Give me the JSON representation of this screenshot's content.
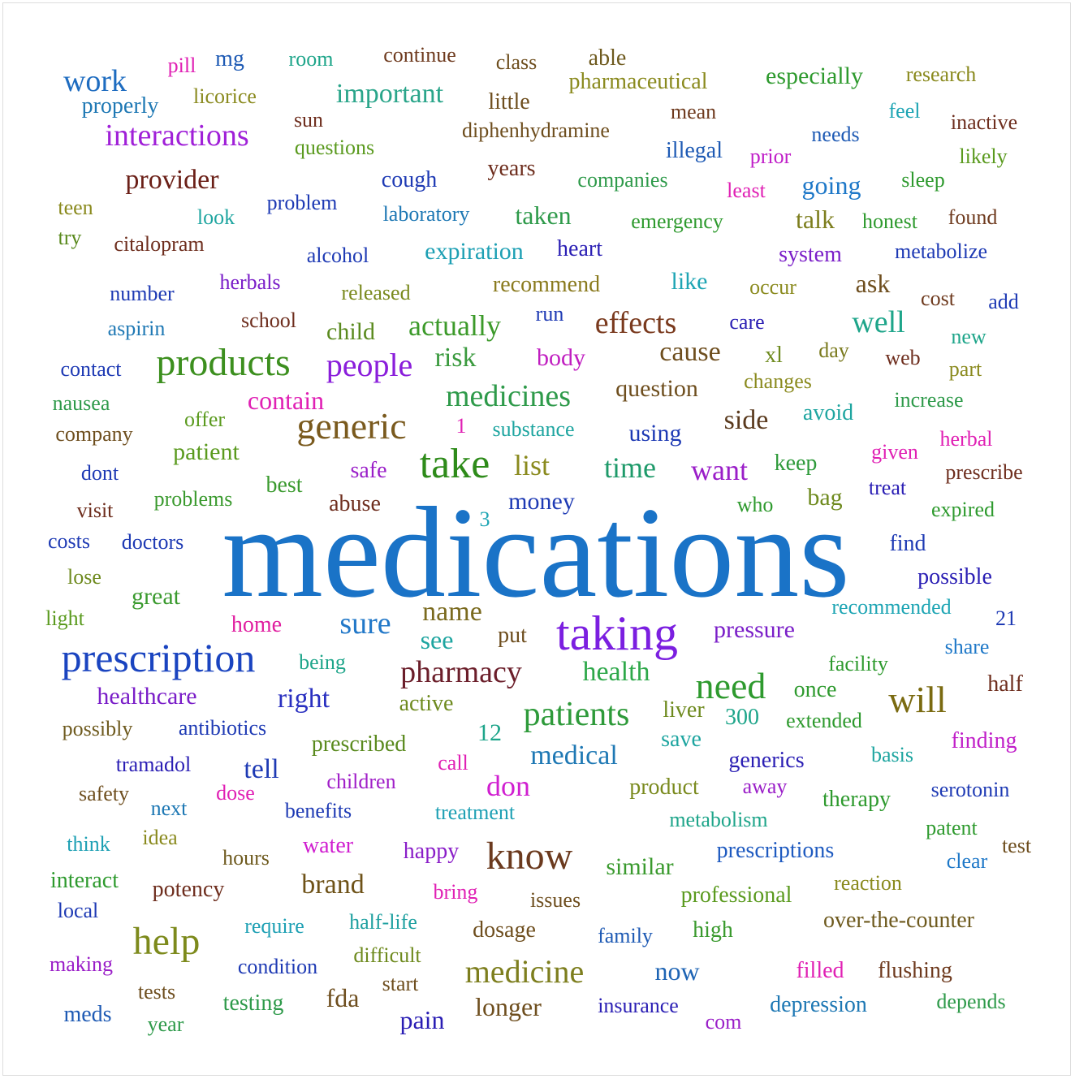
{
  "words": [
    {
      "text": "medications",
      "weight": 160,
      "color": "#1a73c7"
    },
    {
      "text": "taking",
      "weight": 60,
      "color": "#7b1fe0"
    },
    {
      "text": "prescription",
      "weight": 50,
      "color": "#1a44c0"
    },
    {
      "text": "products",
      "weight": 48,
      "color": "#3c8f1e"
    },
    {
      "text": "take",
      "weight": 52,
      "color": "#2e8b1a"
    },
    {
      "text": "generic",
      "weight": 46,
      "color": "#7a5a1e"
    },
    {
      "text": "know",
      "weight": 48,
      "color": "#6b3a1e"
    },
    {
      "text": "help",
      "weight": 48,
      "color": "#7d8a1c"
    },
    {
      "text": "will",
      "weight": 46,
      "color": "#7a6a10"
    },
    {
      "text": "need",
      "weight": 46,
      "color": "#2e9a2e"
    },
    {
      "text": "patients",
      "weight": 42,
      "color": "#2e9a3a"
    },
    {
      "text": "medicine",
      "weight": 40,
      "color": "#7d7e1e"
    },
    {
      "text": "interactions",
      "weight": 38,
      "color": "#a020d8"
    },
    {
      "text": "work",
      "weight": 38,
      "color": "#1e6cc0"
    },
    {
      "text": "people",
      "weight": 40,
      "color": "#8a1edb"
    },
    {
      "text": "sure",
      "weight": 38,
      "color": "#2278c8"
    },
    {
      "text": "pharmacy",
      "weight": 38,
      "color": "#6b1e2a"
    },
    {
      "text": "effects",
      "weight": 38,
      "color": "#7a3a1e"
    },
    {
      "text": "medicines",
      "weight": 38,
      "color": "#2e9a4a"
    },
    {
      "text": "important",
      "weight": 34,
      "color": "#2aa58a"
    },
    {
      "text": "provider",
      "weight": 34,
      "color": "#6b2018"
    },
    {
      "text": "actually",
      "weight": 36,
      "color": "#3c9a2a"
    },
    {
      "text": "don",
      "weight": 36,
      "color": "#d01ed0"
    },
    {
      "text": "cause",
      "weight": 34,
      "color": "#6e4e1e"
    },
    {
      "text": "time",
      "weight": 36,
      "color": "#1e9a6a"
    },
    {
      "text": "want",
      "weight": 36,
      "color": "#9a1ec8"
    },
    {
      "text": "list",
      "weight": 36,
      "color": "#8a8a1e"
    },
    {
      "text": "side",
      "weight": 34,
      "color": "#5a3a1e"
    },
    {
      "text": "well",
      "weight": 38,
      "color": "#1ea58a"
    },
    {
      "text": "brand",
      "weight": 34,
      "color": "#6e5218"
    },
    {
      "text": "health",
      "weight": 34,
      "color": "#2ea84a"
    },
    {
      "text": "right",
      "weight": 34,
      "color": "#2a30c0"
    },
    {
      "text": "name",
      "weight": 34,
      "color": "#7a6a1e"
    },
    {
      "text": "medical",
      "weight": 34,
      "color": "#1e78b4"
    },
    {
      "text": "risk",
      "weight": 34,
      "color": "#3a9a3e"
    },
    {
      "text": "tell",
      "weight": 34,
      "color": "#1e3ab4"
    },
    {
      "text": "contain",
      "weight": 32,
      "color": "#e020b4"
    },
    {
      "text": "similar",
      "weight": 30,
      "color": "#3a9a2e"
    },
    {
      "text": "fda",
      "weight": 32,
      "color": "#6e4e1e"
    },
    {
      "text": "longer",
      "weight": 32,
      "color": "#6e4e1e"
    },
    {
      "text": "now",
      "weight": 32,
      "color": "#1e64b4"
    },
    {
      "text": "pain",
      "weight": 32,
      "color": "#2a1eb4"
    },
    {
      "text": "see",
      "weight": 32,
      "color": "#1ea5a0"
    },
    {
      "text": "talk",
      "weight": 32,
      "color": "#7d7e1e"
    },
    {
      "text": "going",
      "weight": 32,
      "color": "#1e78c8"
    },
    {
      "text": "healthcare",
      "weight": 30,
      "color": "#7a1ec8"
    },
    {
      "text": "taken",
      "weight": 32,
      "color": "#2e9a4a"
    },
    {
      "text": "money",
      "weight": 30,
      "color": "#1e3ab4"
    },
    {
      "text": "pressure",
      "weight": 30,
      "color": "#7a1ec8"
    },
    {
      "text": "body",
      "weight": 30,
      "color": "#c01ec0"
    },
    {
      "text": "using",
      "weight": 30,
      "color": "#1e3ab4"
    },
    {
      "text": "question",
      "weight": 30,
      "color": "#6e4e1e"
    },
    {
      "text": "patient",
      "weight": 30,
      "color": "#5a9a1e"
    },
    {
      "text": "great",
      "weight": 30,
      "color": "#3a9a2e"
    },
    {
      "text": "expiration",
      "weight": 30,
      "color": "#1ea0b4"
    },
    {
      "text": "especially",
      "weight": 30,
      "color": "#2e9a2e"
    },
    {
      "text": "pharmaceutical",
      "weight": 28,
      "color": "#8a8a1e"
    },
    {
      "text": "recommend",
      "weight": 28,
      "color": "#8a7a1e"
    },
    {
      "text": "years",
      "weight": 28,
      "color": "#6e2e1e"
    },
    {
      "text": "meds",
      "weight": 28,
      "color": "#1e5ab4"
    },
    {
      "text": "safe",
      "weight": 28,
      "color": "#9a1ec8"
    },
    {
      "text": "home",
      "weight": 28,
      "color": "#e01ea0"
    },
    {
      "text": "cough",
      "weight": 28,
      "color": "#1e3ab4"
    },
    {
      "text": "ask",
      "weight": 32,
      "color": "#6e4e1e"
    },
    {
      "text": "keep",
      "weight": 28,
      "color": "#2e9a3a"
    },
    {
      "text": "bag",
      "weight": 30,
      "color": "#6e8a1e"
    },
    {
      "text": "like",
      "weight": 30,
      "color": "#1ea5b4"
    },
    {
      "text": "once",
      "weight": 28,
      "color": "#2e9a2e"
    },
    {
      "text": "child",
      "weight": 30,
      "color": "#5a8a1e"
    },
    {
      "text": "abuse",
      "weight": 28,
      "color": "#6e2e1e"
    },
    {
      "text": "best",
      "weight": 28,
      "color": "#3a9a2e"
    },
    {
      "text": "problems",
      "weight": 26,
      "color": "#3a9a2e"
    },
    {
      "text": "system",
      "weight": 28,
      "color": "#7a1ec8"
    },
    {
      "text": "water",
      "weight": 28,
      "color": "#d01ed0"
    },
    {
      "text": "happy",
      "weight": 28,
      "color": "#8a1ec8"
    },
    {
      "text": "product",
      "weight": 28,
      "color": "#7a8a1e"
    },
    {
      "text": "doctors",
      "weight": 26,
      "color": "#1e3ab4"
    },
    {
      "text": "finding",
      "weight": 28,
      "color": "#c01ec8"
    },
    {
      "text": "therapy",
      "weight": 28,
      "color": "#2e9a2e"
    },
    {
      "text": "over-the-counter",
      "weight": 28,
      "color": "#6e5a1e"
    },
    {
      "text": "prescriptions",
      "weight": 28,
      "color": "#1e5ac0"
    },
    {
      "text": "treatment",
      "weight": 26,
      "color": "#1ea0b4"
    },
    {
      "text": "prescribed",
      "weight": 28,
      "color": "#5a8a1e"
    },
    {
      "text": "generics",
      "weight": 28,
      "color": "#2a1eb4"
    },
    {
      "text": "filled",
      "weight": 28,
      "color": "#e020b4"
    },
    {
      "text": "flushing",
      "weight": 28,
      "color": "#6e3a1e"
    },
    {
      "text": "depression",
      "weight": 28,
      "color": "#1e78b4"
    },
    {
      "text": "insurance",
      "weight": 26,
      "color": "#2a1eb4"
    },
    {
      "text": "dosage",
      "weight": 28,
      "color": "#6e4e1e"
    },
    {
      "text": "high",
      "weight": 28,
      "color": "#3a9a2e"
    },
    {
      "text": "professional",
      "weight": 28,
      "color": "#5a9a1e"
    },
    {
      "text": "hours",
      "weight": 26,
      "color": "#6e5a1e"
    },
    {
      "text": "potency",
      "weight": 28,
      "color": "#6e2e1e"
    },
    {
      "text": "interact",
      "weight": 28,
      "color": "#2e9a2e"
    },
    {
      "text": "testing",
      "weight": 28,
      "color": "#2e9a4a"
    },
    {
      "text": "condition",
      "weight": 26,
      "color": "#1e3ab4"
    },
    {
      "text": "benefits",
      "weight": 26,
      "color": "#1e3ab4"
    },
    {
      "text": "children",
      "weight": 26,
      "color": "#a01ec8"
    },
    {
      "text": "difficult",
      "weight": 26,
      "color": "#6e8a1e"
    },
    {
      "text": "half-life",
      "weight": 26,
      "color": "#1ea0a0"
    },
    {
      "text": "require",
      "weight": 26,
      "color": "#1ea0b4"
    },
    {
      "text": "family",
      "weight": 26,
      "color": "#1e5ab4"
    },
    {
      "text": "issues",
      "weight": 26,
      "color": "#6e4e1e"
    },
    {
      "text": "start",
      "weight": 26,
      "color": "#6e4e1e"
    },
    {
      "text": "com",
      "weight": 26,
      "color": "#9a1ec8"
    },
    {
      "text": "depends",
      "weight": 26,
      "color": "#2e9a4a"
    },
    {
      "text": "reaction",
      "weight": 26,
      "color": "#8a8a1e"
    },
    {
      "text": "test",
      "weight": 26,
      "color": "#6e4e1e"
    },
    {
      "text": "clear",
      "weight": 26,
      "color": "#1e78c8"
    },
    {
      "text": "patent",
      "weight": 26,
      "color": "#2e9a2e"
    },
    {
      "text": "serotonin",
      "weight": 26,
      "color": "#1e3ab4"
    },
    {
      "text": "metabolism",
      "weight": 26,
      "color": "#1ea58a"
    },
    {
      "text": "away",
      "weight": 26,
      "color": "#9a1ec8"
    },
    {
      "text": "basis",
      "weight": 26,
      "color": "#1ea5a0"
    },
    {
      "text": "extended",
      "weight": 26,
      "color": "#2e9a2e"
    },
    {
      "text": "300",
      "weight": 28,
      "color": "#1ea58a"
    },
    {
      "text": "liver",
      "weight": 28,
      "color": "#6e8a1e"
    },
    {
      "text": "save",
      "weight": 28,
      "color": "#1ea5a0"
    },
    {
      "text": "active",
      "weight": 28,
      "color": "#6e8a1e"
    },
    {
      "text": "12",
      "weight": 30,
      "color": "#1ea58a"
    },
    {
      "text": "call",
      "weight": 26,
      "color": "#e020b4"
    },
    {
      "text": "dose",
      "weight": 26,
      "color": "#e020b4"
    },
    {
      "text": "bring",
      "weight": 26,
      "color": "#e020b4"
    },
    {
      "text": "being",
      "weight": 26,
      "color": "#1ea58a"
    },
    {
      "text": "put",
      "weight": 28,
      "color": "#6e4e1e"
    },
    {
      "text": "possibly",
      "weight": 26,
      "color": "#6e5a1e"
    },
    {
      "text": "antibiotics",
      "weight": 26,
      "color": "#1e3ab4"
    },
    {
      "text": "tramadol",
      "weight": 26,
      "color": "#2a1eb4"
    },
    {
      "text": "safety",
      "weight": 26,
      "color": "#6e4e1e"
    },
    {
      "text": "next",
      "weight": 26,
      "color": "#1e78b4"
    },
    {
      "text": "idea",
      "weight": 26,
      "color": "#8a8a1e"
    },
    {
      "text": "think",
      "weight": 26,
      "color": "#1ea0b4"
    },
    {
      "text": "local",
      "weight": 26,
      "color": "#1e3ab4"
    },
    {
      "text": "making",
      "weight": 26,
      "color": "#9a1ec8"
    },
    {
      "text": "tests",
      "weight": 26,
      "color": "#6e4e1e"
    },
    {
      "text": "year",
      "weight": 26,
      "color": "#2e9a4a"
    },
    {
      "text": "light",
      "weight": 26,
      "color": "#5a9a1e"
    },
    {
      "text": "lose",
      "weight": 26,
      "color": "#6e8a1e"
    },
    {
      "text": "costs",
      "weight": 26,
      "color": "#1e3ab4"
    },
    {
      "text": "visit",
      "weight": 26,
      "color": "#6e2e1e"
    },
    {
      "text": "dont",
      "weight": 26,
      "color": "#1e3ab4"
    },
    {
      "text": "company",
      "weight": 26,
      "color": "#6e4e1e"
    },
    {
      "text": "nausea",
      "weight": 26,
      "color": "#2e9a4a"
    },
    {
      "text": "contact",
      "weight": 26,
      "color": "#1e3ab4"
    },
    {
      "text": "aspirin",
      "weight": 26,
      "color": "#1e78b4"
    },
    {
      "text": "number",
      "weight": 26,
      "color": "#1e3ab4"
    },
    {
      "text": "try",
      "weight": 26,
      "color": "#5a8a1e"
    },
    {
      "text": "citalopram",
      "weight": 26,
      "color": "#6e2e1e"
    },
    {
      "text": "teen",
      "weight": 26,
      "color": "#8a8a1e"
    },
    {
      "text": "look",
      "weight": 26,
      "color": "#1ea5a0"
    },
    {
      "text": "problem",
      "weight": 26,
      "color": "#1e3ab4"
    },
    {
      "text": "laboratory",
      "weight": 26,
      "color": "#1e78b4"
    },
    {
      "text": "properly",
      "weight": 28,
      "color": "#1e78b4"
    },
    {
      "text": "licorice",
      "weight": 26,
      "color": "#8a8a1e"
    },
    {
      "text": "pill",
      "weight": 26,
      "color": "#e020b4"
    },
    {
      "text": "mg",
      "weight": 28,
      "color": "#1e5ab4"
    },
    {
      "text": "room",
      "weight": 26,
      "color": "#1ea58a"
    },
    {
      "text": "continue",
      "weight": 26,
      "color": "#6e3a1e"
    },
    {
      "text": "class",
      "weight": 26,
      "color": "#6e4e1e"
    },
    {
      "text": "able",
      "weight": 28,
      "color": "#6e5a1e"
    },
    {
      "text": "research",
      "weight": 26,
      "color": "#8a8a1e"
    },
    {
      "text": "little",
      "weight": 28,
      "color": "#6e4e1e"
    },
    {
      "text": "mean",
      "weight": 26,
      "color": "#6e3a1e"
    },
    {
      "text": "feel",
      "weight": 26,
      "color": "#1ea5b4"
    },
    {
      "text": "inactive",
      "weight": 26,
      "color": "#6e2e1e"
    },
    {
      "text": "sun",
      "weight": 26,
      "color": "#6e2e1e"
    },
    {
      "text": "questions",
      "weight": 26,
      "color": "#5a9a1e"
    },
    {
      "text": "diphenhydramine",
      "weight": 26,
      "color": "#6e4e1e"
    },
    {
      "text": "illegal",
      "weight": 28,
      "color": "#1e5ab4"
    },
    {
      "text": "needs",
      "weight": 26,
      "color": "#1e5ab4"
    },
    {
      "text": "prior",
      "weight": 26,
      "color": "#c01ec8"
    },
    {
      "text": "likely",
      "weight": 26,
      "color": "#5a9a1e"
    },
    {
      "text": "companies",
      "weight": 26,
      "color": "#2e9a4a"
    },
    {
      "text": "least",
      "weight": 26,
      "color": "#e020b4"
    },
    {
      "text": "sleep",
      "weight": 26,
      "color": "#2e9a2e"
    },
    {
      "text": "emergency",
      "weight": 26,
      "color": "#2e9a2e"
    },
    {
      "text": "honest",
      "weight": 26,
      "color": "#2e9a2e"
    },
    {
      "text": "found",
      "weight": 26,
      "color": "#6e3a1e"
    },
    {
      "text": "alcohol",
      "weight": 26,
      "color": "#1e3ab4"
    },
    {
      "text": "heart",
      "weight": 28,
      "color": "#2a1eb4"
    },
    {
      "text": "metabolize",
      "weight": 26,
      "color": "#1e3ab4"
    },
    {
      "text": "herbals",
      "weight": 26,
      "color": "#7a1ec8"
    },
    {
      "text": "released",
      "weight": 26,
      "color": "#7a8a1e"
    },
    {
      "text": "occur",
      "weight": 26,
      "color": "#8a8a1e"
    },
    {
      "text": "cost",
      "weight": 26,
      "color": "#6e3a1e"
    },
    {
      "text": "add",
      "weight": 26,
      "color": "#1e3ab4"
    },
    {
      "text": "school",
      "weight": 26,
      "color": "#6e2e1e"
    },
    {
      "text": "run",
      "weight": 26,
      "color": "#1e3ab4"
    },
    {
      "text": "care",
      "weight": 26,
      "color": "#2a1eb4"
    },
    {
      "text": "new",
      "weight": 26,
      "color": "#1ea58a"
    },
    {
      "text": "xl",
      "weight": 28,
      "color": "#6e8a1e"
    },
    {
      "text": "day",
      "weight": 26,
      "color": "#7a7a1e"
    },
    {
      "text": "web",
      "weight": 26,
      "color": "#6e2e1e"
    },
    {
      "text": "part",
      "weight": 26,
      "color": "#8a8a1e"
    },
    {
      "text": "changes",
      "weight": 26,
      "color": "#8a8a1e"
    },
    {
      "text": "increase",
      "weight": 26,
      "color": "#2e9a4a"
    },
    {
      "text": "offer",
      "weight": 26,
      "color": "#5a9a1e"
    },
    {
      "text": "1",
      "weight": 26,
      "color": "#e020b4"
    },
    {
      "text": "substance",
      "weight": 26,
      "color": "#1ea5a0"
    },
    {
      "text": "avoid",
      "weight": 28,
      "color": "#1ea5a0"
    },
    {
      "text": "herbal",
      "weight": 26,
      "color": "#e020b4"
    },
    {
      "text": "given",
      "weight": 26,
      "color": "#e020b4"
    },
    {
      "text": "prescribe",
      "weight": 26,
      "color": "#6e2e1e"
    },
    {
      "text": "treat",
      "weight": 26,
      "color": "#2a1eb4"
    },
    {
      "text": "expired",
      "weight": 26,
      "color": "#2e9a2e"
    },
    {
      "text": "who",
      "weight": 26,
      "color": "#2e9a2e"
    },
    {
      "text": "3",
      "weight": 26,
      "color": "#1ea5b4"
    },
    {
      "text": "find",
      "weight": 28,
      "color": "#1e3ab4"
    },
    {
      "text": "possible",
      "weight": 28,
      "color": "#2a1eb4"
    },
    {
      "text": "recommended",
      "weight": 26,
      "color": "#1ea5b4"
    },
    {
      "text": "21",
      "weight": 26,
      "color": "#1e3ab4"
    },
    {
      "text": "share",
      "weight": 26,
      "color": "#1e78c8"
    },
    {
      "text": "facility",
      "weight": 26,
      "color": "#2e9a2e"
    },
    {
      "text": "half",
      "weight": 28,
      "color": "#6e2e1e"
    }
  ]
}
